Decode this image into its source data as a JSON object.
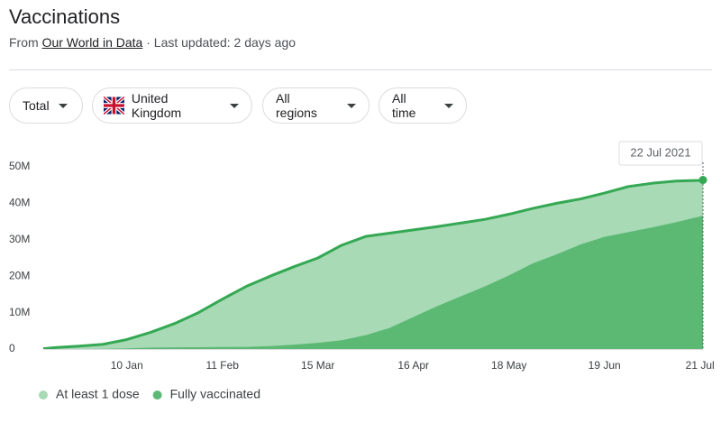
{
  "header": {
    "title": "Vaccinations",
    "source_prefix": "From",
    "source_link": "Our World in Data",
    "updated": "· Last updated: 2 days ago"
  },
  "filters": [
    "Total",
    "United Kingdom",
    "All regions",
    "All time"
  ],
  "chart_data": {
    "type": "area",
    "tooltip": "22 Jul 2021",
    "x": [
      "13 Dec",
      "17 Dec",
      "25 Dec",
      "2 Jan",
      "10 Jan",
      "18 Jan",
      "26 Jan",
      "3 Feb",
      "11 Feb",
      "19 Feb",
      "27 Feb",
      "7 Mar",
      "15 Mar",
      "23 Mar",
      "31 Mar",
      "8 Apr",
      "16 Apr",
      "24 Apr",
      "2 May",
      "10 May",
      "18 May",
      "26 May",
      "3 Jun",
      "11 Jun",
      "19 Jun",
      "27 Jun",
      "5 Jul",
      "13 Jul",
      "21 Jul",
      "22 Jul"
    ],
    "series": [
      {
        "name": "At least 1 dose",
        "color": "#a8dab5",
        "line_color": "#34a853",
        "values": [
          100000,
          400000,
          800000,
          1300000,
          2600000,
          4600000,
          7000000,
          10000000,
          13700000,
          17200000,
          20000000,
          22600000,
          25000000,
          28500000,
          30900000,
          31800000,
          32700000,
          33600000,
          34600000,
          35600000,
          37000000,
          38600000,
          40000000,
          41200000,
          42800000,
          44600000,
          45500000,
          46100000,
          46300000,
          46400000
        ]
      },
      {
        "name": "Fully vaccinated",
        "color": "#5bb974",
        "values": [
          0,
          0,
          0,
          20000,
          200000,
          400000,
          450000,
          500000,
          550000,
          600000,
          800000,
          1200000,
          1700000,
          2400000,
          3800000,
          5800000,
          8800000,
          11800000,
          14500000,
          17200000,
          20200000,
          23500000,
          26000000,
          28700000,
          30800000,
          32100000,
          33400000,
          34800000,
          36400000,
          36600000
        ]
      }
    ],
    "ylim": [
      0,
      50000000
    ],
    "yticks": [
      0,
      {
        "value": 10000000,
        "label": "10M"
      },
      {
        "value": 20000000,
        "label": "20M"
      },
      {
        "value": 30000000,
        "label": "30M"
      },
      {
        "value": 40000000,
        "label": "40M"
      },
      {
        "value": 50000000,
        "label": "50M"
      }
    ],
    "xticks": [
      "10 Jan",
      "11 Feb",
      "15 Mar",
      "16 Apr",
      "18 May",
      "19 Jun",
      "21 Jul"
    ],
    "grid": false
  }
}
